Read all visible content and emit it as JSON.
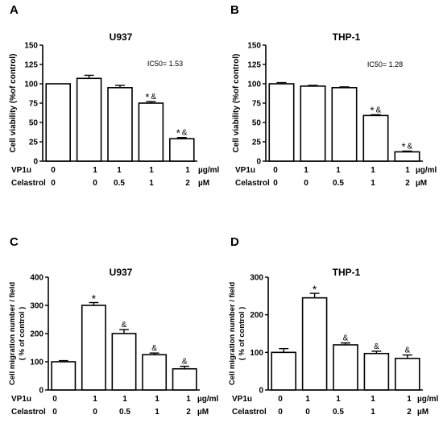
{
  "figure": {
    "treatment_labels": {
      "vp1u": "VP1u",
      "celastrol": "Celastrol"
    },
    "units": {
      "vp1u": "µg/ml",
      "celastrol": "µM"
    },
    "vp1u_values": [
      "0",
      "1",
      "1",
      "1",
      "1"
    ],
    "celastrol_values": [
      "0",
      "0",
      "0.5",
      "1",
      "2"
    ]
  },
  "chart_data": [
    {
      "panel": "A",
      "type": "bar",
      "title": "U937",
      "ylabel": "Cell viability (%of control)",
      "annotation": "IC50= 1.53",
      "ylim": [
        0,
        150
      ],
      "yticks": [
        0,
        25,
        50,
        75,
        100,
        125,
        150
      ],
      "categories": [
        "0 / 0",
        "1 / 0",
        "1 / 0.5",
        "1 / 1",
        "1 / 2"
      ],
      "values": [
        100,
        107,
        95,
        75,
        29
      ],
      "errors": [
        0,
        4,
        3,
        2,
        1.5
      ],
      "marks": [
        "",
        "",
        "",
        "*&",
        "*&"
      ]
    },
    {
      "panel": "B",
      "type": "bar",
      "title": "THP-1",
      "ylabel": "Cell viability (%of control)",
      "annotation": "IC50= 1.28",
      "ylim": [
        0,
        150
      ],
      "yticks": [
        0,
        25,
        50,
        75,
        100,
        125,
        150
      ],
      "categories": [
        "0 / 0",
        "1 / 0",
        "1 / 0.5",
        "1 / 1",
        "1 / 2"
      ],
      "values": [
        100,
        97,
        95,
        59,
        12
      ],
      "errors": [
        1.5,
        1,
        1,
        1,
        1
      ],
      "marks": [
        "",
        "",
        "",
        "*&",
        "*&"
      ]
    },
    {
      "panel": "C",
      "type": "bar",
      "title": "U937",
      "ylabel_lines": [
        "Cell migration number / field",
        "( % of control )"
      ],
      "ylim": [
        0,
        400
      ],
      "yticks": [
        0,
        100,
        200,
        300,
        400
      ],
      "categories": [
        "0 / 0",
        "1 / 0",
        "1 / 0.5",
        "1 / 1",
        "1 / 2"
      ],
      "values": [
        100,
        300,
        200,
        125,
        75
      ],
      "errors": [
        4,
        10,
        14,
        6,
        9
      ],
      "marks": [
        "",
        "*",
        "&",
        "&",
        "&"
      ]
    },
    {
      "panel": "D",
      "type": "bar",
      "title": "THP-1",
      "ylabel_lines": [
        "Cell migration number / field",
        "( % of control )"
      ],
      "ylim": [
        0,
        300
      ],
      "yticks": [
        0,
        100,
        200,
        300
      ],
      "categories": [
        "0 / 0",
        "1 / 0",
        "1 / 0.5",
        "1 / 1",
        "1 / 2"
      ],
      "values": [
        100,
        245,
        120,
        97,
        84
      ],
      "errors": [
        10,
        12,
        5,
        6,
        9
      ],
      "marks": [
        "",
        "*",
        "&",
        "&",
        "&"
      ]
    }
  ]
}
